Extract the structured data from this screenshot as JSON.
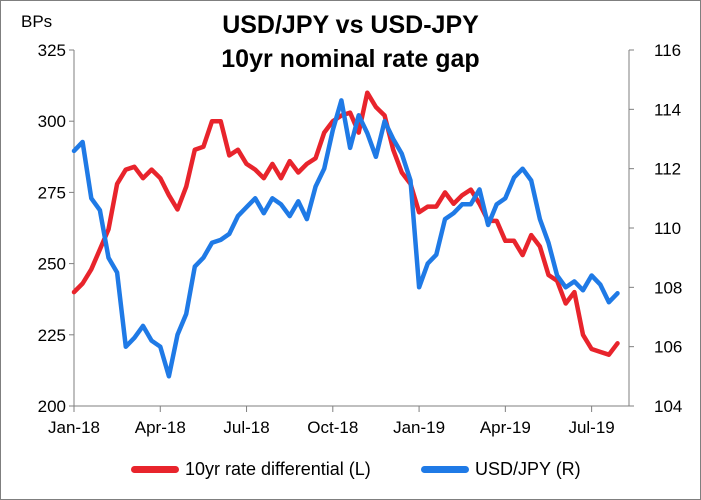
{
  "chart_data": {
    "type": "line",
    "title_lines": [
      "USD/JPY vs USD-JPY",
      "10yr nominal rate gap"
    ],
    "left_axis": {
      "label": "BPs",
      "ylim": [
        200,
        325
      ],
      "ticks": [
        200,
        225,
        250,
        275,
        300,
        325
      ]
    },
    "right_axis": {
      "label": "",
      "ylim": [
        104,
        116
      ],
      "ticks": [
        104,
        106,
        108,
        110,
        112,
        114,
        116
      ]
    },
    "x_ticks": [
      "Jan-18",
      "Apr-18",
      "Jul-18",
      "Oct-18",
      "Jan-19",
      "Apr-19",
      "Jul-19"
    ],
    "x_tick_months": [
      0,
      3,
      6,
      9,
      12,
      15,
      18
    ],
    "x_range_months": [
      0,
      19.3
    ],
    "series": [
      {
        "name": "10yr rate differential (L)",
        "axis": "left",
        "color": "#e8242c",
        "x": [
          0,
          0.3,
          0.6,
          0.9,
          1.2,
          1.5,
          1.8,
          2.1,
          2.4,
          2.7,
          3.0,
          3.3,
          3.6,
          3.9,
          4.2,
          4.5,
          4.8,
          5.1,
          5.4,
          5.7,
          6.0,
          6.3,
          6.6,
          6.9,
          7.2,
          7.5,
          7.8,
          8.1,
          8.4,
          8.7,
          9.0,
          9.3,
          9.6,
          9.9,
          10.2,
          10.5,
          10.8,
          11.1,
          11.4,
          11.7,
          12.0,
          12.3,
          12.6,
          12.9,
          13.2,
          13.5,
          13.8,
          14.1,
          14.4,
          14.7,
          15.0,
          15.3,
          15.6,
          15.9,
          16.2,
          16.5,
          16.8,
          17.1,
          17.4,
          17.7,
          18.0,
          18.3,
          18.6,
          18.9
        ],
        "values": [
          240,
          243,
          248,
          255,
          262,
          278,
          283,
          284,
          280,
          283,
          280,
          274,
          269,
          277,
          290,
          291,
          300,
          300,
          288,
          290,
          285,
          283,
          280,
          285,
          280,
          286,
          282,
          285,
          287,
          296,
          300,
          302,
          303,
          296,
          310,
          305,
          302,
          290,
          282,
          278,
          268,
          270,
          270,
          275,
          271,
          274,
          276,
          271,
          265,
          265,
          258,
          258,
          253,
          260,
          256,
          246,
          244,
          236,
          240,
          225,
          220,
          219,
          218,
          222
        ],
        "legend": "10yr rate differential (L)"
      },
      {
        "name": "USD/JPY (R)",
        "axis": "right",
        "color": "#1f7ae6",
        "x": [
          0,
          0.3,
          0.6,
          0.9,
          1.2,
          1.5,
          1.8,
          2.1,
          2.4,
          2.7,
          3.0,
          3.3,
          3.6,
          3.9,
          4.2,
          4.5,
          4.8,
          5.1,
          5.4,
          5.7,
          6.0,
          6.3,
          6.6,
          6.9,
          7.2,
          7.5,
          7.8,
          8.1,
          8.4,
          8.7,
          9.0,
          9.3,
          9.6,
          9.9,
          10.2,
          10.5,
          10.8,
          11.1,
          11.4,
          11.7,
          12.0,
          12.3,
          12.6,
          12.9,
          13.2,
          13.5,
          13.8,
          14.1,
          14.4,
          14.7,
          15.0,
          15.3,
          15.6,
          15.9,
          16.2,
          16.5,
          16.8,
          17.1,
          17.4,
          17.7,
          18.0,
          18.3,
          18.6,
          18.9
        ],
        "values": [
          112.6,
          112.9,
          111.0,
          110.6,
          109.0,
          108.5,
          106.0,
          106.3,
          106.7,
          106.2,
          106.0,
          105.0,
          106.4,
          107.1,
          108.7,
          109.0,
          109.5,
          109.6,
          109.8,
          110.4,
          110.7,
          111.0,
          110.5,
          111.0,
          110.8,
          110.4,
          110.9,
          110.3,
          111.4,
          112.0,
          113.3,
          114.3,
          112.7,
          113.8,
          113.2,
          112.4,
          113.6,
          113.0,
          112.5,
          111.6,
          108.0,
          108.8,
          109.1,
          110.3,
          110.5,
          110.8,
          110.8,
          111.3,
          110.1,
          110.8,
          111.0,
          111.7,
          112.0,
          111.6,
          110.3,
          109.5,
          108.4,
          108.0,
          108.2,
          107.9,
          108.4,
          108.1,
          107.5,
          107.8
        ],
        "legend": "USD/JPY (R)"
      }
    ]
  }
}
